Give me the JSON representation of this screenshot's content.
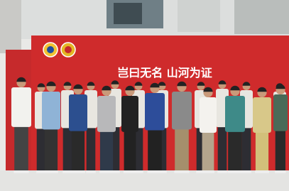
{
  "banner": {
    "text": "岂曰无名 山河为证"
  }
}
